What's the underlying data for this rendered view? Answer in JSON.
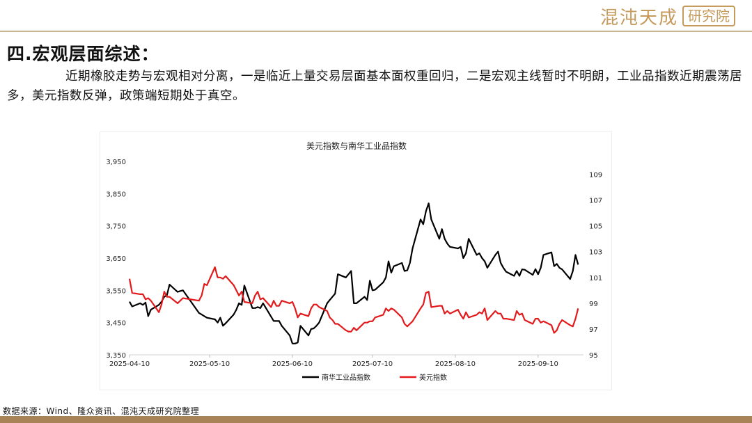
{
  "header": {
    "logo_brand": "混沌天成",
    "logo_box": "研究院"
  },
  "section_title": "四.宏观层面综述：",
  "paragraph": "近期橡胶走势与宏观相对分离，一是临近上量交易层面基本面权重回归，二是宏观主线暂时不明朗，工业品指数近期震荡居多，美元指数反弹，政策端短期处于真空。",
  "source_note": "数据来源：Wind、隆众资讯、混沌天成研究院整理",
  "colors": {
    "nanhua": "#000000",
    "usd": "#e31a1c",
    "accent": "#c59a5b"
  },
  "chart_data": {
    "type": "line",
    "title": "美元指数与南华工业品指数",
    "x_ticks": [
      "2025-04-10",
      "2025-05-10",
      "2025-06-10",
      "2025-07-10",
      "2025-08-10",
      "2025-09-10"
    ],
    "x_range": [
      "2025-04-10",
      "2025-09-27"
    ],
    "y_left": {
      "ticks": [
        "3,350",
        "3,450",
        "3,550",
        "3,650",
        "3,750",
        "3,850",
        "3,950"
      ],
      "range": [
        3350,
        3950
      ]
    },
    "y_right": {
      "ticks": [
        "95",
        "97",
        "99",
        "101",
        "103",
        "105",
        "107",
        "109"
      ],
      "range": [
        95,
        110
      ]
    },
    "legend_position": "bottom",
    "series": [
      {
        "name": "南华工业品指数",
        "axis": "left",
        "color": "#000000",
        "points": [
          [
            "2025-04-10",
            3515
          ],
          [
            "2025-04-11",
            3500
          ],
          [
            "2025-04-14",
            3510
          ],
          [
            "2025-04-15",
            3505
          ],
          [
            "2025-04-16",
            3512
          ],
          [
            "2025-04-17",
            3470
          ],
          [
            "2025-04-18",
            3490
          ],
          [
            "2025-04-21",
            3505
          ],
          [
            "2025-04-22",
            3515
          ],
          [
            "2025-04-23",
            3530
          ],
          [
            "2025-04-24",
            3535
          ],
          [
            "2025-04-25",
            3568
          ],
          [
            "2025-04-28",
            3545
          ],
          [
            "2025-04-29",
            3548
          ],
          [
            "2025-04-30",
            3550
          ],
          [
            "2025-05-06",
            3480
          ],
          [
            "2025-05-07",
            3475
          ],
          [
            "2025-05-08",
            3470
          ],
          [
            "2025-05-09",
            3465
          ],
          [
            "2025-05-12",
            3460
          ],
          [
            "2025-05-13",
            3450
          ],
          [
            "2025-05-14",
            3465
          ],
          [
            "2025-05-15",
            3440
          ],
          [
            "2025-05-16",
            3448
          ],
          [
            "2025-05-19",
            3475
          ],
          [
            "2025-05-20",
            3490
          ],
          [
            "2025-05-21",
            3510
          ],
          [
            "2025-05-22",
            3505
          ],
          [
            "2025-05-23",
            3565
          ],
          [
            "2025-05-26",
            3495
          ],
          [
            "2025-05-27",
            3495
          ],
          [
            "2025-05-28",
            3498
          ],
          [
            "2025-05-29",
            3495
          ],
          [
            "2025-05-30",
            3510
          ],
          [
            "2025-06-03",
            3455
          ],
          [
            "2025-06-04",
            3455
          ],
          [
            "2025-06-05",
            3455
          ],
          [
            "2025-06-06",
            3440
          ],
          [
            "2025-06-09",
            3410
          ],
          [
            "2025-06-10",
            3385
          ],
          [
            "2025-06-11",
            3385
          ],
          [
            "2025-06-12",
            3388
          ],
          [
            "2025-06-13",
            3440
          ],
          [
            "2025-06-16",
            3410
          ],
          [
            "2025-06-17",
            3430
          ],
          [
            "2025-06-18",
            3432
          ],
          [
            "2025-06-19",
            3440
          ],
          [
            "2025-06-20",
            3450
          ],
          [
            "2025-06-23",
            3510
          ],
          [
            "2025-06-24",
            3520
          ],
          [
            "2025-06-25",
            3530
          ],
          [
            "2025-06-26",
            3540
          ],
          [
            "2025-06-27",
            3600
          ],
          [
            "2025-06-30",
            3590
          ],
          [
            "2025-07-01",
            3600
          ],
          [
            "2025-07-02",
            3610
          ],
          [
            "2025-07-03",
            3510
          ],
          [
            "2025-07-04",
            3510
          ],
          [
            "2025-07-07",
            3530
          ],
          [
            "2025-07-08",
            3520
          ],
          [
            "2025-07-09",
            3580
          ],
          [
            "2025-07-10",
            3550
          ],
          [
            "2025-07-11",
            3552
          ],
          [
            "2025-07-14",
            3575
          ],
          [
            "2025-07-15",
            3590
          ],
          [
            "2025-07-16",
            3640
          ],
          [
            "2025-07-17",
            3605
          ],
          [
            "2025-07-18",
            3625
          ],
          [
            "2025-07-21",
            3635
          ],
          [
            "2025-07-22",
            3610
          ],
          [
            "2025-07-23",
            3612
          ],
          [
            "2025-07-24",
            3635
          ],
          [
            "2025-07-25",
            3680
          ],
          [
            "2025-07-28",
            3770
          ],
          [
            "2025-07-29",
            3755
          ],
          [
            "2025-07-30",
            3795
          ],
          [
            "2025-07-31",
            3820
          ],
          [
            "2025-08-01",
            3770
          ],
          [
            "2025-08-04",
            3710
          ],
          [
            "2025-08-05",
            3740
          ],
          [
            "2025-08-06",
            3710
          ],
          [
            "2025-08-07",
            3695
          ],
          [
            "2025-08-08",
            3685
          ],
          [
            "2025-08-11",
            3680
          ],
          [
            "2025-08-12",
            3685
          ],
          [
            "2025-08-13",
            3650
          ],
          [
            "2025-08-14",
            3665
          ],
          [
            "2025-08-15",
            3710
          ],
          [
            "2025-08-18",
            3660
          ],
          [
            "2025-08-19",
            3665
          ],
          [
            "2025-08-20",
            3650
          ],
          [
            "2025-08-21",
            3640
          ],
          [
            "2025-08-22",
            3620
          ],
          [
            "2025-08-25",
            3660
          ],
          [
            "2025-08-26",
            3670
          ],
          [
            "2025-08-27",
            3635
          ],
          [
            "2025-08-28",
            3620
          ],
          [
            "2025-08-29",
            3608
          ],
          [
            "2025-09-01",
            3595
          ],
          [
            "2025-09-02",
            3610
          ],
          [
            "2025-09-03",
            3595
          ],
          [
            "2025-09-04",
            3615
          ],
          [
            "2025-09-05",
            3614
          ],
          [
            "2025-09-08",
            3598
          ],
          [
            "2025-09-09",
            3616
          ],
          [
            "2025-09-10",
            3600
          ],
          [
            "2025-09-11",
            3620
          ],
          [
            "2025-09-12",
            3660
          ],
          [
            "2025-09-15",
            3668
          ],
          [
            "2025-09-16",
            3625
          ],
          [
            "2025-09-17",
            3632
          ],
          [
            "2025-09-18",
            3620
          ],
          [
            "2025-09-19",
            3615
          ],
          [
            "2025-09-22",
            3585
          ],
          [
            "2025-09-23",
            3610
          ],
          [
            "2025-09-24",
            3660
          ],
          [
            "2025-09-25",
            3630
          ]
        ]
      },
      {
        "name": "美元指数",
        "axis": "right",
        "color": "#e31a1c",
        "points": [
          [
            "2025-04-10",
            100.9
          ],
          [
            "2025-04-11",
            99.8
          ],
          [
            "2025-04-14",
            99.7
          ],
          [
            "2025-04-15",
            99.7
          ],
          [
            "2025-04-16",
            99.3
          ],
          [
            "2025-04-17",
            99.4
          ],
          [
            "2025-04-18",
            99.2
          ],
          [
            "2025-04-21",
            98.3
          ],
          [
            "2025-04-22",
            98.9
          ],
          [
            "2025-04-23",
            99.9
          ],
          [
            "2025-04-24",
            99.5
          ],
          [
            "2025-04-25",
            99.5
          ],
          [
            "2025-04-28",
            99.0
          ],
          [
            "2025-04-29",
            99.2
          ],
          [
            "2025-04-30",
            99.4
          ],
          [
            "2025-05-06",
            99.2
          ],
          [
            "2025-05-07",
            99.6
          ],
          [
            "2025-05-08",
            100.5
          ],
          [
            "2025-05-09",
            100.4
          ],
          [
            "2025-05-12",
            101.8
          ],
          [
            "2025-05-13",
            101.0
          ],
          [
            "2025-05-14",
            101.0
          ],
          [
            "2025-05-15",
            100.9
          ],
          [
            "2025-05-16",
            101.1
          ],
          [
            "2025-05-19",
            100.4
          ],
          [
            "2025-05-20",
            100.0
          ],
          [
            "2025-05-21",
            99.6
          ],
          [
            "2025-05-22",
            99.9
          ],
          [
            "2025-05-23",
            99.1
          ],
          [
            "2025-05-26",
            99.0
          ],
          [
            "2025-05-27",
            99.6
          ],
          [
            "2025-05-28",
            99.9
          ],
          [
            "2025-05-29",
            99.3
          ],
          [
            "2025-05-30",
            99.4
          ],
          [
            "2025-06-02",
            98.7
          ],
          [
            "2025-06-03",
            99.2
          ],
          [
            "2025-06-04",
            98.8
          ],
          [
            "2025-06-05",
            98.8
          ],
          [
            "2025-06-06",
            99.2
          ],
          [
            "2025-06-09",
            99.0
          ],
          [
            "2025-06-10",
            99.1
          ],
          [
            "2025-06-11",
            98.6
          ],
          [
            "2025-06-12",
            97.9
          ],
          [
            "2025-06-13",
            98.2
          ],
          [
            "2025-06-16",
            98.0
          ],
          [
            "2025-06-17",
            98.6
          ],
          [
            "2025-06-18",
            98.9
          ],
          [
            "2025-06-19",
            98.9
          ],
          [
            "2025-06-20",
            98.7
          ],
          [
            "2025-06-23",
            98.4
          ],
          [
            "2025-06-24",
            97.9
          ],
          [
            "2025-06-25",
            97.7
          ],
          [
            "2025-06-26",
            97.4
          ],
          [
            "2025-06-27",
            97.4
          ],
          [
            "2025-06-30",
            96.9
          ],
          [
            "2025-07-01",
            96.8
          ],
          [
            "2025-07-02",
            96.8
          ],
          [
            "2025-07-03",
            97.1
          ],
          [
            "2025-07-04",
            96.9
          ],
          [
            "2025-07-07",
            97.5
          ],
          [
            "2025-07-08",
            97.5
          ],
          [
            "2025-07-09",
            97.6
          ],
          [
            "2025-07-10",
            97.6
          ],
          [
            "2025-07-11",
            97.9
          ],
          [
            "2025-07-14",
            98.1
          ],
          [
            "2025-07-15",
            98.6
          ],
          [
            "2025-07-16",
            98.4
          ],
          [
            "2025-07-17",
            98.6
          ],
          [
            "2025-07-18",
            98.5
          ],
          [
            "2025-07-21",
            97.9
          ],
          [
            "2025-07-22",
            97.4
          ],
          [
            "2025-07-23",
            97.2
          ],
          [
            "2025-07-24",
            97.4
          ],
          [
            "2025-07-25",
            97.6
          ],
          [
            "2025-07-28",
            98.6
          ],
          [
            "2025-07-29",
            98.9
          ],
          [
            "2025-07-30",
            99.8
          ],
          [
            "2025-07-31",
            99.9
          ],
          [
            "2025-08-01",
            98.7
          ],
          [
            "2025-08-04",
            98.8
          ],
          [
            "2025-08-05",
            98.8
          ],
          [
            "2025-08-06",
            98.2
          ],
          [
            "2025-08-07",
            98.4
          ],
          [
            "2025-08-08",
            98.2
          ],
          [
            "2025-08-11",
            98.5
          ],
          [
            "2025-08-12",
            98.1
          ],
          [
            "2025-08-13",
            97.8
          ],
          [
            "2025-08-14",
            98.3
          ],
          [
            "2025-08-15",
            97.9
          ],
          [
            "2025-08-18",
            98.1
          ],
          [
            "2025-08-19",
            98.3
          ],
          [
            "2025-08-20",
            98.2
          ],
          [
            "2025-08-21",
            98.6
          ],
          [
            "2025-08-22",
            97.7
          ],
          [
            "2025-08-25",
            98.4
          ],
          [
            "2025-08-26",
            98.2
          ],
          [
            "2025-08-27",
            98.2
          ],
          [
            "2025-08-28",
            97.8
          ],
          [
            "2025-08-29",
            97.8
          ],
          [
            "2025-09-01",
            97.7
          ],
          [
            "2025-09-02",
            98.4
          ],
          [
            "2025-09-03",
            98.1
          ],
          [
            "2025-09-04",
            98.2
          ],
          [
            "2025-09-05",
            97.7
          ],
          [
            "2025-09-08",
            97.4
          ],
          [
            "2025-09-09",
            97.8
          ],
          [
            "2025-09-10",
            97.8
          ],
          [
            "2025-09-11",
            97.5
          ],
          [
            "2025-09-12",
            97.6
          ],
          [
            "2025-09-15",
            97.3
          ],
          [
            "2025-09-16",
            96.7
          ],
          [
            "2025-09-17",
            96.9
          ],
          [
            "2025-09-18",
            97.4
          ],
          [
            "2025-09-19",
            97.7
          ],
          [
            "2025-09-22",
            97.3
          ],
          [
            "2025-09-23",
            97.2
          ],
          [
            "2025-09-24",
            97.8
          ],
          [
            "2025-09-25",
            98.6
          ]
        ]
      }
    ]
  }
}
